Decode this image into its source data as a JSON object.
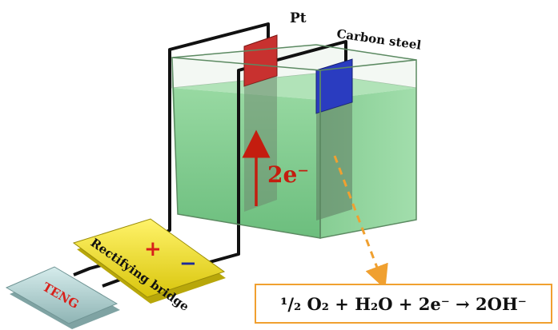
{
  "labels": {
    "anode": "Pt",
    "cathode": "Carbon steel",
    "electron_flow": "2e⁻",
    "plus_sign": "+",
    "minus_sign": "−",
    "bridge": "Rectifying bridge",
    "generator": "TENG"
  },
  "equation": "¹/₂ O₂ + H₂O + 2e⁻ → 2OH⁻",
  "colors": {
    "electrolyte": "#7fd08a",
    "anode": "#c8312f",
    "cathode": "#2a3cc0",
    "bridge": "#f2e21a",
    "teng": "#b9d8d8",
    "arrow": "#c41d0f",
    "dashed_arrow": "#f0a030"
  }
}
